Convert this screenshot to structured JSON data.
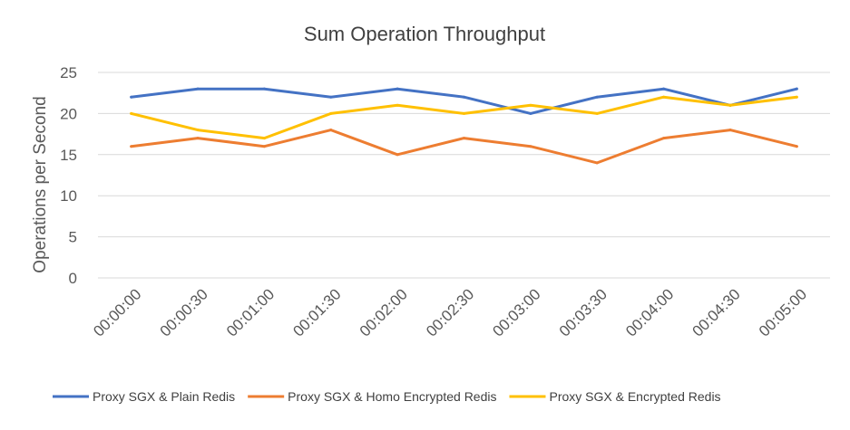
{
  "chart_data": {
    "type": "line",
    "title": "Sum Operation Throughput",
    "xlabel": "",
    "ylabel": "Operations per Second",
    "categories": [
      "00:00:00",
      "00:00:30",
      "00:01:00",
      "00:01:30",
      "00:02:00",
      "00:02:30",
      "00:03:00",
      "00:03:30",
      "00:04:00",
      "00:04:30",
      "00:05:00"
    ],
    "yticks": [
      "0",
      "5",
      "10",
      "15",
      "20",
      "25"
    ],
    "ylim": [
      0,
      25
    ],
    "grid": true,
    "legend_position": "bottom",
    "series": [
      {
        "name": "Proxy SGX & Plain Redis",
        "color": "#4472C4",
        "values": [
          22,
          23,
          23,
          22,
          23,
          22,
          20,
          22,
          23,
          21,
          23
        ]
      },
      {
        "name": "Proxy SGX & Homo Encrypted Redis",
        "color": "#ED7D31",
        "values": [
          16,
          17,
          16,
          18,
          15,
          17,
          16,
          14,
          17,
          18,
          16
        ]
      },
      {
        "name": "Proxy SGX & Encrypted Redis",
        "color": "#FFC000",
        "values": [
          20,
          18,
          17,
          20,
          21,
          20,
          21,
          20,
          22,
          21,
          22
        ]
      }
    ]
  }
}
